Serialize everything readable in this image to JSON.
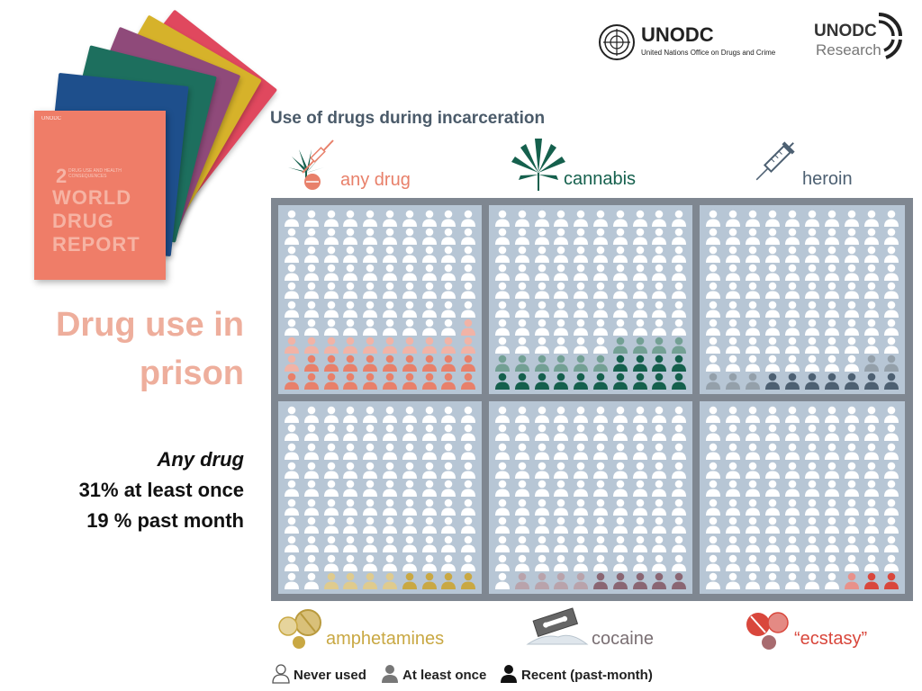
{
  "report_cover": {
    "publisher": "UNODC",
    "number": "2",
    "subtitle": "DRUG USE AND HEALTH CONSEQUENCES",
    "title": "WORLD DRUG REPORT",
    "colors": [
      "#ef7d68",
      "#1e4f8c",
      "#1d6f5e",
      "#8f4a7a",
      "#d6b22a",
      "#e0485e"
    ]
  },
  "logos": {
    "unodc": {
      "name": "UNODC",
      "subtitle": "United Nations Office on Drugs and Crime"
    },
    "research": {
      "name": "UNODC",
      "subtitle": "Research"
    }
  },
  "slide": {
    "title_line1": "Drug use in",
    "title_line2": "prison",
    "stat_heading": "Any drug",
    "stat_line1": "31% at least once",
    "stat_line2": "19 % past month"
  },
  "infographic": {
    "title": "Use of drugs during incarceration",
    "panels": [
      {
        "label": "any drug",
        "icon": "cannabis-syringe-pill-icon",
        "color": "#e8806a",
        "at_least_once_pct": 31,
        "past_month_pct": 19
      },
      {
        "label": "cannabis",
        "icon": "cannabis-leaf-icon",
        "color": "#15604d",
        "at_least_once_pct": 24,
        "past_month_pct": 14
      },
      {
        "label": "heroin",
        "icon": "syringe-icon",
        "color": "#4d6072",
        "at_least_once_pct": 12,
        "past_month_pct": 7
      },
      {
        "label": "amphetamines",
        "icon": "pills-icon",
        "color": "#c9a843",
        "at_least_once_pct": 8,
        "past_month_pct": 4
      },
      {
        "label": "cocaine",
        "icon": "razor-blade-icon",
        "color": "#8a6673",
        "at_least_once_pct": 9,
        "past_month_pct": 5
      },
      {
        "label": "“ecstasy”",
        "icon": "tablets-icon",
        "color": "#d9473c",
        "at_least_once_pct": 3,
        "past_month_pct": 2
      }
    ]
  },
  "legend": {
    "never_used": "Never used",
    "at_least_once": "At least once",
    "recent": "Recent (past-month)"
  }
}
